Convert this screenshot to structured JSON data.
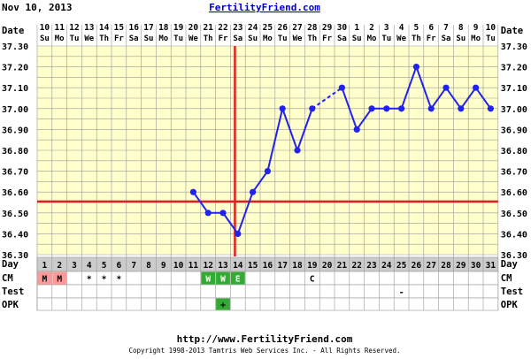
{
  "header": {
    "date_text": "Nov 10, 2013",
    "site_title": "FertilityFriend.com"
  },
  "footer": {
    "url": "http://www.FertilityFriend.com",
    "copyright": "Copyright 1998-2013 Tamtris Web Services Inc. - All Rights Reserved."
  },
  "colors": {
    "background": "#ffffff",
    "grid_fill": "#ffffcc",
    "grid_line": "#999999",
    "temp_line": "#2222ee",
    "coverline": "#e02020",
    "ovulation_line": "#e02020",
    "title_link": "#0000cc",
    "day_row_fill": "#cccccc",
    "menses_fill": "#ff9999",
    "cm_fill": "#33aa33",
    "opk_fill": "#33aa33"
  },
  "chart_data": {
    "type": "line",
    "row_labels": {
      "date": "Date",
      "day": "Day",
      "cm": "CM",
      "test": "Test",
      "opk": "OPK"
    },
    "dates": [
      "10",
      "11",
      "12",
      "13",
      "14",
      "15",
      "16",
      "17",
      "18",
      "19",
      "20",
      "21",
      "22",
      "23",
      "24",
      "25",
      "26",
      "27",
      "28",
      "29",
      "30",
      "1",
      "2",
      "3",
      "4",
      "5",
      "6",
      "7",
      "8",
      "9",
      "10"
    ],
    "weekdays": [
      "Su",
      "Mo",
      "Tu",
      "We",
      "Th",
      "Fr",
      "Sa",
      "Su",
      "Mo",
      "Tu",
      "We",
      "Th",
      "Fr",
      "Sa",
      "Su",
      "Mo",
      "Tu",
      "We",
      "Th",
      "Fr",
      "Sa",
      "Su",
      "Mo",
      "Tu",
      "We",
      "Th",
      "Fr",
      "Sa",
      "Su",
      "Mo",
      "Tu"
    ],
    "cycle_days": [
      "1",
      "2",
      "3",
      "4",
      "5",
      "6",
      "7",
      "8",
      "9",
      "10",
      "11",
      "12",
      "13",
      "14",
      "15",
      "16",
      "17",
      "18",
      "19",
      "20",
      "21",
      "22",
      "23",
      "24",
      "25",
      "26",
      "27",
      "28",
      "29",
      "30",
      "31"
    ],
    "y_ticks": [
      "37.30",
      "37.20",
      "37.10",
      "37.00",
      "36.90",
      "36.80",
      "36.70",
      "36.60",
      "36.50",
      "36.40",
      "36.30"
    ],
    "ylim": [
      36.3,
      37.3
    ],
    "y_step": 0.05,
    "temperatures": [
      null,
      null,
      null,
      null,
      null,
      null,
      null,
      null,
      null,
      null,
      36.6,
      36.5,
      36.5,
      36.4,
      36.6,
      36.7,
      37.0,
      36.8,
      37.0,
      null,
      37.1,
      36.9,
      37.0,
      37.0,
      37.0,
      37.2,
      37.0,
      37.1,
      37.0,
      37.1,
      37.0
    ],
    "dashed_segments": [
      [
        18,
        20
      ]
    ],
    "coverline": 36.555,
    "ovulation_day": 14,
    "cm": [
      "M",
      "M",
      "",
      "*",
      "*",
      "*",
      "",
      "",
      "",
      "",
      "",
      "W",
      "W",
      "E",
      "",
      "",
      "",
      "",
      "C",
      "",
      "",
      "",
      "",
      "",
      "",
      "",
      "",
      "",
      "",
      "",
      ""
    ],
    "cm_highlight": [
      "menses",
      "menses",
      "",
      "",
      "",
      "",
      "",
      "",
      "",
      "",
      "",
      "fertile",
      "fertile",
      "fertile",
      "",
      "",
      "",
      "",
      "",
      "",
      "",
      "",
      "",
      "",
      "",
      "",
      "",
      "",
      "",
      "",
      ""
    ],
    "test": [
      "",
      "",
      "",
      "",
      "",
      "",
      "",
      "",
      "",
      "",
      "",
      "",
      "",
      "",
      "",
      "",
      "",
      "",
      "",
      "",
      "",
      "",
      "",
      "",
      "-",
      "",
      "",
      "",
      "",
      "",
      ""
    ],
    "opk": [
      "",
      "",
      "",
      "",
      "",
      "",
      "",
      "",
      "",
      "",
      "",
      "",
      "+",
      "",
      "",
      "",
      "",
      "",
      "",
      "",
      "",
      "",
      "",
      "",
      "",
      "",
      "",
      "",
      "",
      "",
      ""
    ],
    "grid": true
  }
}
